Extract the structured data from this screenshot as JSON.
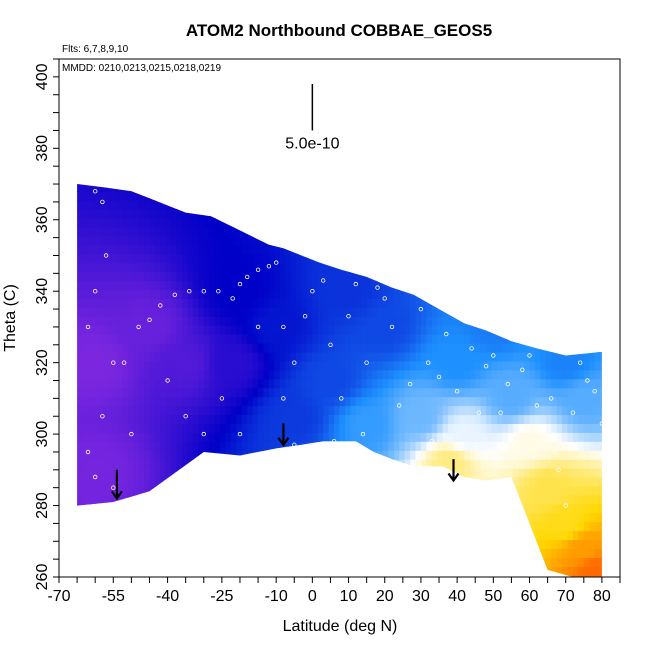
{
  "chart_data": {
    "type": "heatmap",
    "title": "ATOM2 Northbound COBBAE_GEOS5",
    "info_lines": [
      "Flts: 6,7,8,9,10",
      "MMDD: 0210,0213,0215,0218,0219"
    ],
    "xlabel": "Latitude (deg N)",
    "ylabel": "Theta (C)",
    "xlim": [
      -70,
      85
    ],
    "ylim": [
      260,
      405
    ],
    "x_ticks": [
      -70,
      -55,
      -40,
      -25,
      -10,
      0,
      10,
      20,
      30,
      40,
      50,
      60,
      70,
      80
    ],
    "y_ticks": [
      260,
      280,
      300,
      320,
      340,
      360,
      380,
      400
    ],
    "scale_bar": {
      "label": "5.0e-10",
      "x": 0,
      "y_top": 398,
      "y_bottom": 385
    },
    "colormap": [
      "#8a2be2",
      "#0000c8",
      "#1e90ff",
      "#ffffff",
      "#ffd700",
      "#ff4500"
    ],
    "boundary": {
      "top": [
        [
          -65,
          370
        ],
        [
          -57,
          369
        ],
        [
          -50,
          368
        ],
        [
          -45,
          366
        ],
        [
          -40,
          364
        ],
        [
          -35,
          362
        ],
        [
          -28,
          361
        ],
        [
          -22,
          358
        ],
        [
          -18,
          356
        ],
        [
          -12,
          353
        ],
        [
          -8,
          352
        ],
        [
          -3,
          350
        ],
        [
          2,
          348
        ],
        [
          8,
          346
        ],
        [
          15,
          344
        ],
        [
          22,
          341
        ],
        [
          28,
          339
        ],
        [
          35,
          335
        ],
        [
          42,
          331
        ],
        [
          48,
          329
        ],
        [
          55,
          326
        ],
        [
          62,
          324
        ],
        [
          70,
          322
        ],
        [
          80,
          323
        ]
      ],
      "bottom": [
        [
          80,
          260
        ],
        [
          72,
          260
        ],
        [
          65,
          262
        ],
        [
          55,
          288
        ],
        [
          48,
          287
        ],
        [
          42,
          288
        ],
        [
          36,
          291
        ],
        [
          28,
          291
        ],
        [
          22,
          293
        ],
        [
          17,
          295
        ],
        [
          12,
          298
        ],
        [
          3,
          298
        ],
        [
          -3,
          297
        ],
        [
          -10,
          296
        ],
        [
          -20,
          294
        ],
        [
          -30,
          295
        ],
        [
          -45,
          284
        ],
        [
          -55,
          281
        ],
        [
          -65,
          280
        ]
      ]
    },
    "arrows": [
      {
        "x": -54,
        "y_top": 290,
        "y_bottom": 282
      },
      {
        "x": -8,
        "y_top": 303,
        "y_bottom": 297
      },
      {
        "x": 39,
        "y_top": 293,
        "y_bottom": 287
      }
    ],
    "field_anchors": [
      {
        "x": -60,
        "y": 320,
        "v": 0.02
      },
      {
        "x": -60,
        "y": 290,
        "v": 0.03
      },
      {
        "x": -45,
        "y": 330,
        "v": 0.05
      },
      {
        "x": -35,
        "y": 320,
        "v": 0.08
      },
      {
        "x": -22,
        "y": 320,
        "v": 0.14
      },
      {
        "x": -20,
        "y": 340,
        "v": 0.2
      },
      {
        "x": -10,
        "y": 330,
        "v": 0.23
      },
      {
        "x": -5,
        "y": 305,
        "v": 0.28
      },
      {
        "x": 5,
        "y": 315,
        "v": 0.3
      },
      {
        "x": 10,
        "y": 340,
        "v": 0.27
      },
      {
        "x": 20,
        "y": 330,
        "v": 0.3
      },
      {
        "x": 15,
        "y": 303,
        "v": 0.42
      },
      {
        "x": 30,
        "y": 305,
        "v": 0.47
      },
      {
        "x": 40,
        "y": 320,
        "v": 0.4
      },
      {
        "x": 42,
        "y": 300,
        "v": 0.58
      },
      {
        "x": 38,
        "y": 292,
        "v": 0.7
      },
      {
        "x": 50,
        "y": 330,
        "v": 0.37
      },
      {
        "x": 55,
        "y": 310,
        "v": 0.45
      },
      {
        "x": 60,
        "y": 298,
        "v": 0.62
      },
      {
        "x": 65,
        "y": 285,
        "v": 0.74
      },
      {
        "x": 70,
        "y": 275,
        "v": 0.78
      },
      {
        "x": 75,
        "y": 268,
        "v": 0.88
      },
      {
        "x": 78,
        "y": 262,
        "v": 0.95
      },
      {
        "x": 75,
        "y": 310,
        "v": 0.45
      },
      {
        "x": 70,
        "y": 320,
        "v": 0.38
      }
    ],
    "sample_points": [
      [
        -60,
        368
      ],
      [
        -58,
        365
      ],
      [
        -57,
        350
      ],
      [
        -60,
        340
      ],
      [
        -62,
        330
      ],
      [
        -55,
        320
      ],
      [
        -58,
        305
      ],
      [
        -62,
        295
      ],
      [
        -60,
        288
      ],
      [
        -55,
        285
      ],
      [
        -50,
        300
      ],
      [
        -52,
        320
      ],
      [
        -48,
        330
      ],
      [
        -45,
        332
      ],
      [
        -42,
        336
      ],
      [
        -38,
        339
      ],
      [
        -34,
        340
      ],
      [
        -30,
        340
      ],
      [
        -26,
        340
      ],
      [
        -22,
        338
      ],
      [
        -20,
        342
      ],
      [
        -18,
        344
      ],
      [
        -15,
        346
      ],
      [
        -12,
        347
      ],
      [
        -10,
        348
      ],
      [
        -8,
        330
      ],
      [
        -8,
        310
      ],
      [
        -5,
        320
      ],
      [
        -2,
        333
      ],
      [
        3,
        343
      ],
      [
        5,
        325
      ],
      [
        8,
        310
      ],
      [
        10,
        333
      ],
      [
        12,
        342
      ],
      [
        15,
        320
      ],
      [
        18,
        341
      ],
      [
        20,
        338
      ],
      [
        22,
        330
      ],
      [
        25,
        343
      ],
      [
        27,
        314
      ],
      [
        30,
        335
      ],
      [
        32,
        320
      ],
      [
        35,
        316
      ],
      [
        37,
        328
      ],
      [
        40,
        312
      ],
      [
        42,
        333
      ],
      [
        44,
        324
      ],
      [
        46,
        306
      ],
      [
        48,
        319
      ],
      [
        50,
        322
      ],
      [
        52,
        306
      ],
      [
        54,
        314
      ],
      [
        56,
        300
      ],
      [
        58,
        318
      ],
      [
        60,
        322
      ],
      [
        62,
        308
      ],
      [
        64,
        300
      ],
      [
        66,
        310
      ],
      [
        67,
        295
      ],
      [
        68,
        290
      ],
      [
        70,
        280
      ],
      [
        72,
        306
      ],
      [
        74,
        320
      ],
      [
        76,
        315
      ],
      [
        78,
        312
      ],
      [
        80,
        303
      ],
      [
        -35,
        305
      ],
      [
        -30,
        300
      ],
      [
        -40,
        315
      ],
      [
        -25,
        310
      ],
      [
        -20,
        300
      ],
      [
        -15,
        330
      ],
      [
        -5,
        297
      ],
      [
        0,
        340
      ],
      [
        6,
        298
      ],
      [
        14,
        300
      ],
      [
        24,
        308
      ],
      [
        33,
        298
      ],
      [
        45,
        297
      ]
    ]
  }
}
